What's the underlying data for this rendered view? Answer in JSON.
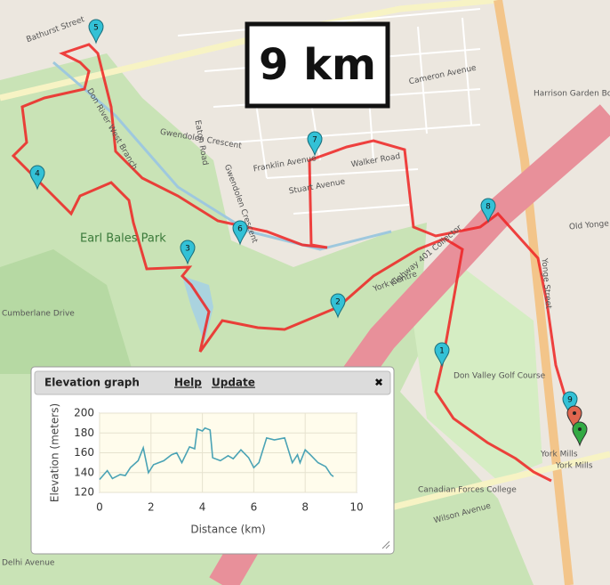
{
  "distance_box": "9 km",
  "map_labels": [
    "Earl Bales Park",
    "Don Valley Golf Course",
    "York Mills",
    "York Mills",
    "Wilson Avenue",
    "Yonge Street",
    "Highway 401 Collector",
    "York Centre",
    "Canadian Forces College",
    "Franklin Avenue",
    "Gwendolen Crescent",
    "Gwendolen Crescent",
    "Stuart Avenue",
    "Walker Road",
    "Cameron Avenue",
    "Eaton Road",
    "Old Yonge Street",
    "Don River West Branch",
    "Cumberlane Drive",
    "Delhi Avenue",
    "Harrison Garden Boulevard",
    "Bathurst Street"
  ],
  "markers": [
    "1",
    "2",
    "3",
    "4",
    "5",
    "6",
    "7",
    "8",
    "9"
  ],
  "panel": {
    "title": "Elevation graph",
    "links": [
      "Help",
      "Update"
    ],
    "close": "✖"
  },
  "chart_data": {
    "type": "line",
    "xlabel": "Distance (km)",
    "ylabel": "Elevation (meters)",
    "xlim": [
      0,
      10
    ],
    "ylim": [
      120,
      200
    ],
    "xticks": [
      0,
      2,
      4,
      6,
      8,
      10
    ],
    "yticks": [
      120,
      140,
      160,
      180,
      200
    ],
    "grid": true,
    "series": [
      {
        "name": "Elevation",
        "color": "#4aa3b5",
        "x": [
          0,
          0.3,
          0.5,
          0.8,
          1.0,
          1.2,
          1.5,
          1.7,
          1.9,
          2.1,
          2.5,
          2.8,
          3.0,
          3.2,
          3.5,
          3.7,
          3.8,
          4.0,
          4.1,
          4.3,
          4.4,
          4.7,
          5.0,
          5.2,
          5.5,
          5.8,
          6.0,
          6.2,
          6.5,
          6.8,
          7.2,
          7.5,
          7.7,
          7.8,
          8.0,
          8.2,
          8.5,
          8.8,
          9.0,
          9.1
        ],
        "values": [
          133,
          142,
          134,
          138,
          137,
          145,
          152,
          165,
          140,
          148,
          152,
          158,
          160,
          150,
          166,
          164,
          184,
          182,
          185,
          183,
          155,
          152,
          157,
          154,
          163,
          155,
          145,
          150,
          175,
          173,
          175,
          150,
          158,
          150,
          163,
          158,
          150,
          146,
          138,
          136
        ]
      }
    ]
  }
}
